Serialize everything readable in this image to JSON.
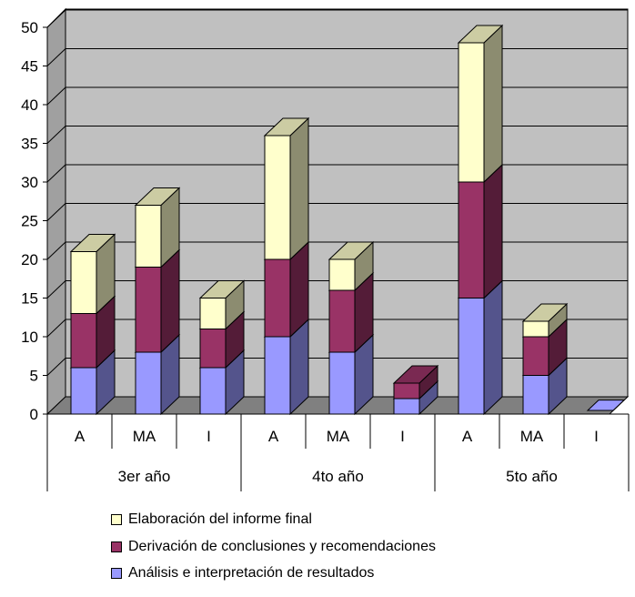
{
  "chart_data": {
    "type": "bar",
    "stacked": true,
    "three_d": true,
    "categories": [
      "A",
      "MA",
      "I",
      "A",
      "MA",
      "I",
      "A",
      "MA",
      "I"
    ],
    "groups": [
      "3er año",
      "4to año",
      "5to año"
    ],
    "group_size": 3,
    "ylim": [
      0,
      50
    ],
    "yticks": [
      0,
      5,
      10,
      15,
      20,
      25,
      30,
      35,
      40,
      45,
      50
    ],
    "grid": true,
    "legend_position": "bottom",
    "series": [
      {
        "name": "Análisis e interpretación de resultados",
        "color": "#9999ff",
        "values": [
          6,
          8,
          6,
          10,
          8,
          2,
          15,
          5,
          0
        ]
      },
      {
        "name": "Derivación de conclusiones y recomendaciones",
        "color": "#993366",
        "values": [
          7,
          11,
          5,
          10,
          8,
          2,
          15,
          5,
          0
        ]
      },
      {
        "name": "Elaboración del informe final",
        "color": "#ffffcc",
        "values": [
          8,
          8,
          4,
          16,
          4,
          0,
          18,
          2,
          0
        ]
      }
    ],
    "legend_order": [
      2,
      1,
      0
    ]
  }
}
